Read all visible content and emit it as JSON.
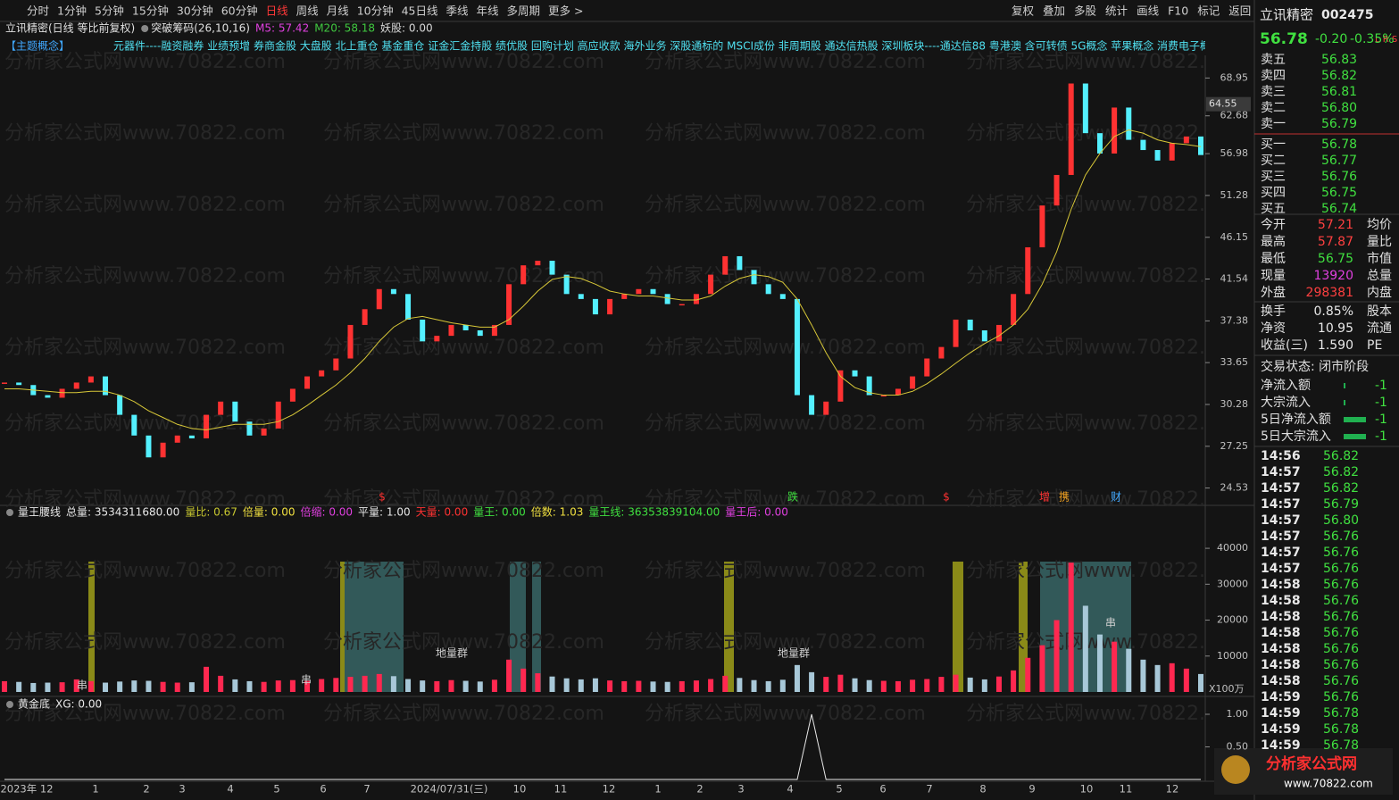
{
  "toolbar": {
    "periods": [
      "分时",
      "1分钟",
      "5分钟",
      "15分钟",
      "30分钟",
      "60分钟",
      "日线",
      "周线",
      "月线",
      "10分钟",
      "45日线",
      "季线",
      "年线",
      "多周期",
      "更多 >"
    ],
    "active_index": 6,
    "tools": [
      "复权",
      "叠加",
      "多股",
      "统计",
      "画线",
      "F10",
      "标记",
      "返回"
    ]
  },
  "topics": {
    "label": "【主题概念】",
    "text": "元器件----融资融券 业绩预增 券商金股 大盘股 北上重仓 基金重仓 证金汇金持股 绩优股 回购计划 高应收款 海外业务 深股通标的 MSCI成份 非周期股 通达信热股 深圳板块----通达信88 粤港澳 含可转债 5G概念 苹果概念 消费电子概念 汽"
  },
  "watermark": "分析家公式网www.70822.com",
  "x_axis_labels": [
    "2023年 12",
    "1",
    "2",
    "3",
    "4",
    "5",
    "6",
    "7",
    "2024/07/31(三)",
    "10",
    "11",
    "12",
    "1",
    "2",
    "3",
    "4",
    "5",
    "6",
    "7",
    "8",
    "9",
    "10",
    "11",
    "12"
  ],
  "chart_data": [
    {
      "type": "candle-close",
      "title": "立讯精密(日线 等比前复权)",
      "indicator": "突破筹码(26,10,16)",
      "legend": [
        {
          "text": "M5: 57.42",
          "color": "#e040e0"
        },
        {
          "text": "M20: 58.18",
          "color": "#40c840"
        },
        {
          "text": "妖股: 0.00",
          "color": "#d8d8d8"
        }
      ],
      "log_scale": true,
      "ylim": [
        23.8,
        73
      ],
      "yticks": [
        68.95,
        62.68,
        56.98,
        51.28,
        46.15,
        41.54,
        37.38,
        33.65,
        30.28,
        27.25,
        24.53
      ],
      "marker": 64.55,
      "events": [
        "$",
        "跌",
        "$",
        "增",
        "携",
        "财"
      ],
      "series": [
        {
          "color": "#ff3232",
          "down_color": "#54f0ff",
          "values": [
            32.0,
            31.8,
            31.0,
            30.8,
            31.5,
            32.0,
            32.5,
            31.0,
            29.5,
            28.0,
            26.5,
            27.5,
            28.0,
            27.8,
            29.5,
            30.5,
            29.0,
            28.0,
            28.5,
            30.5,
            31.5,
            32.5,
            33.0,
            34.0,
            37.0,
            38.5,
            40.5,
            40.0,
            37.5,
            35.5,
            36.0,
            37.0,
            36.5,
            36.0,
            37.0,
            41.0,
            43.0,
            43.5,
            42.0,
            40.0,
            39.5,
            38.0,
            39.5,
            40.0,
            40.5,
            40.0,
            39.0,
            39.0,
            40.0,
            42.0,
            44.0,
            42.5,
            41.0,
            40.0,
            39.5,
            31.0,
            29.5,
            30.5,
            33.0,
            32.5,
            31.0,
            31.0,
            31.5,
            32.5,
            34.0,
            35.0,
            37.5,
            36.5,
            35.5,
            37.0,
            40.0,
            45.0,
            50.0,
            54.0,
            68.0,
            60.0,
            57.0,
            64.0,
            59.0,
            57.5,
            56.0,
            58.5,
            59.5,
            56.78
          ]
        },
        {
          "color": "#d8c838",
          "values": [
            31.5,
            31.5,
            31.4,
            31.3,
            31.2,
            31.2,
            31.3,
            31.3,
            31.0,
            30.5,
            29.8,
            29.3,
            28.8,
            28.5,
            28.4,
            28.6,
            28.8,
            28.8,
            28.8,
            29.0,
            29.5,
            30.2,
            31.0,
            31.8,
            32.8,
            34.0,
            35.5,
            36.8,
            37.6,
            37.8,
            37.5,
            37.2,
            37.0,
            36.8,
            36.8,
            37.5,
            38.8,
            40.3,
            41.5,
            41.8,
            41.6,
            41.0,
            40.3,
            40.0,
            39.8,
            39.8,
            39.6,
            39.4,
            39.4,
            39.8,
            40.8,
            41.6,
            42.0,
            41.8,
            41.2,
            39.5,
            37.0,
            34.5,
            32.5,
            31.6,
            31.2,
            31.0,
            31.0,
            31.3,
            31.9,
            32.7,
            33.6,
            34.5,
            35.3,
            36.0,
            37.0,
            38.5,
            41.0,
            44.5,
            49.5,
            54.0,
            57.0,
            59.5,
            60.5,
            60.0,
            59.0,
            58.5,
            58.3,
            58.0
          ]
        }
      ]
    },
    {
      "type": "bar",
      "title": "量王腰线",
      "legend": [
        {
          "text": "总量: 3534311680.00",
          "color": "#e8e8e8"
        },
        {
          "text": "量比: 0.67",
          "color": "#c8c830"
        },
        {
          "text": "倍量: 0.00",
          "color": "#f0e040"
        },
        {
          "text": "倍缩: 0.00",
          "color": "#e040e0"
        },
        {
          "text": "平量: 1.00",
          "color": "#e8e8e8"
        },
        {
          "text": "天量: 0.00",
          "color": "#ff3232"
        },
        {
          "text": "量王: 0.00",
          "color": "#40e040"
        },
        {
          "text": "倍数: 1.03",
          "color": "#f0e040"
        },
        {
          "text": "量王线: 36353839104.00",
          "color": "#40e040"
        },
        {
          "text": "量王后: 0.00",
          "color": "#e040e0"
        }
      ],
      "annotations": [
        "地量群",
        "地量群",
        "串",
        "串",
        "串"
      ],
      "unit": "X100万",
      "ylim": [
        0,
        44000
      ],
      "yticks": [
        10000,
        20000,
        30000,
        40000
      ],
      "values": [
        3000,
        2800,
        2500,
        2600,
        2700,
        3500,
        3000,
        2600,
        2900,
        3200,
        3100,
        2800,
        2600,
        2700,
        7000,
        4500,
        3500,
        3000,
        2800,
        3200,
        3300,
        3100,
        3600,
        3900,
        4200,
        4500,
        5000,
        4400,
        3600,
        3200,
        3000,
        3300,
        3100,
        2900,
        3400,
        9000,
        6500,
        5200,
        4300,
        3800,
        3500,
        3800,
        3200,
        3000,
        3100,
        2900,
        2800,
        3000,
        3200,
        3600,
        4500,
        3900,
        3300,
        3000,
        3400,
        7500,
        5500,
        4200,
        4800,
        3800,
        3300,
        3100,
        3000,
        3400,
        3600,
        4200,
        4800,
        4000,
        3500,
        4300,
        6000,
        9500,
        13000,
        20000,
        36000,
        24000,
        16000,
        14000,
        12000,
        9000,
        7500,
        8000,
        6500,
        5000
      ]
    },
    {
      "type": "line",
      "title": "黄金底",
      "legend": [
        {
          "text": "XG: 0.00",
          "color": "#e8e8e8"
        }
      ],
      "color": "#e8e8e8",
      "ylim": [
        0,
        1
      ],
      "yticks": [
        {
          "value": 0.5,
          "label": "0.50"
        },
        {
          "value": 1,
          "label": "1.00"
        }
      ],
      "values": [
        0,
        0,
        0,
        0,
        0,
        0,
        0,
        0,
        0,
        0,
        0,
        0,
        0,
        0,
        0,
        0,
        0,
        0,
        0,
        0,
        0,
        0,
        0,
        0,
        0,
        0,
        0,
        0,
        0,
        0,
        0,
        0,
        0,
        0,
        0,
        0,
        0,
        0,
        0,
        0,
        0,
        0,
        0,
        0,
        0,
        0,
        0,
        0,
        0,
        0,
        0,
        0,
        0,
        0,
        0,
        0,
        1,
        0,
        0,
        0,
        0,
        0,
        0,
        0,
        0,
        0,
        0,
        0,
        0,
        0,
        0,
        0,
        0,
        0,
        0,
        0,
        0,
        0,
        0,
        0,
        0,
        0,
        0,
        0
      ]
    }
  ],
  "quote": {
    "name": "立讯精密",
    "code": "002475",
    "price": "56.78",
    "change": "-0.20",
    "pct": "-0.35%",
    "corner": "L R S",
    "book": [
      [
        "卖五",
        "56.83"
      ],
      [
        "卖四",
        "56.82"
      ],
      [
        "卖三",
        "56.81"
      ],
      [
        "卖二",
        "56.80"
      ],
      [
        "卖一",
        "56.79"
      ],
      [
        "买一",
        "56.78"
      ],
      [
        "买二",
        "56.77"
      ],
      [
        "买三",
        "56.76"
      ],
      [
        "买四",
        "56.75"
      ],
      [
        "买五",
        "56.74"
      ]
    ],
    "stats": [
      [
        "今开",
        "57.21",
        "均价"
      ],
      [
        "最高",
        "57.87",
        "量比"
      ],
      [
        "最低",
        "56.75",
        "市值"
      ],
      [
        "现量",
        "13920",
        "总量"
      ],
      [
        "外盘",
        "298381",
        "内盘"
      ],
      [
        "换手",
        "0.85%",
        "股本"
      ],
      [
        "净资",
        "10.95",
        "流通"
      ],
      [
        "收益(三)",
        "1.590",
        "PE"
      ]
    ],
    "status": "交易状态: 闭市阶段",
    "flows": [
      [
        "净流入额",
        "-1"
      ],
      [
        "大宗流入",
        "-1"
      ],
      [
        "5日净流入额",
        "-1"
      ],
      [
        "5日大宗流入",
        "-1"
      ]
    ],
    "trades": [
      [
        "14:56",
        "56.82"
      ],
      [
        "14:57",
        "56.82"
      ],
      [
        "14:57",
        "56.82"
      ],
      [
        "14:57",
        "56.79"
      ],
      [
        "14:57",
        "56.80"
      ],
      [
        "14:57",
        "56.76"
      ],
      [
        "14:57",
        "56.76"
      ],
      [
        "14:57",
        "56.76"
      ],
      [
        "14:58",
        "56.76"
      ],
      [
        "14:58",
        "56.76"
      ],
      [
        "14:58",
        "56.76"
      ],
      [
        "14:58",
        "56.76"
      ],
      [
        "14:58",
        "56.76"
      ],
      [
        "14:58",
        "56.76"
      ],
      [
        "14:58",
        "56.76"
      ],
      [
        "14:59",
        "56.76"
      ],
      [
        "14:59",
        "56.78"
      ],
      [
        "14:59",
        "56.78"
      ],
      [
        "14:59",
        "56.78"
      ]
    ]
  },
  "logo": {
    "cn": "分析家公式网",
    "url": "www.70822.com"
  }
}
